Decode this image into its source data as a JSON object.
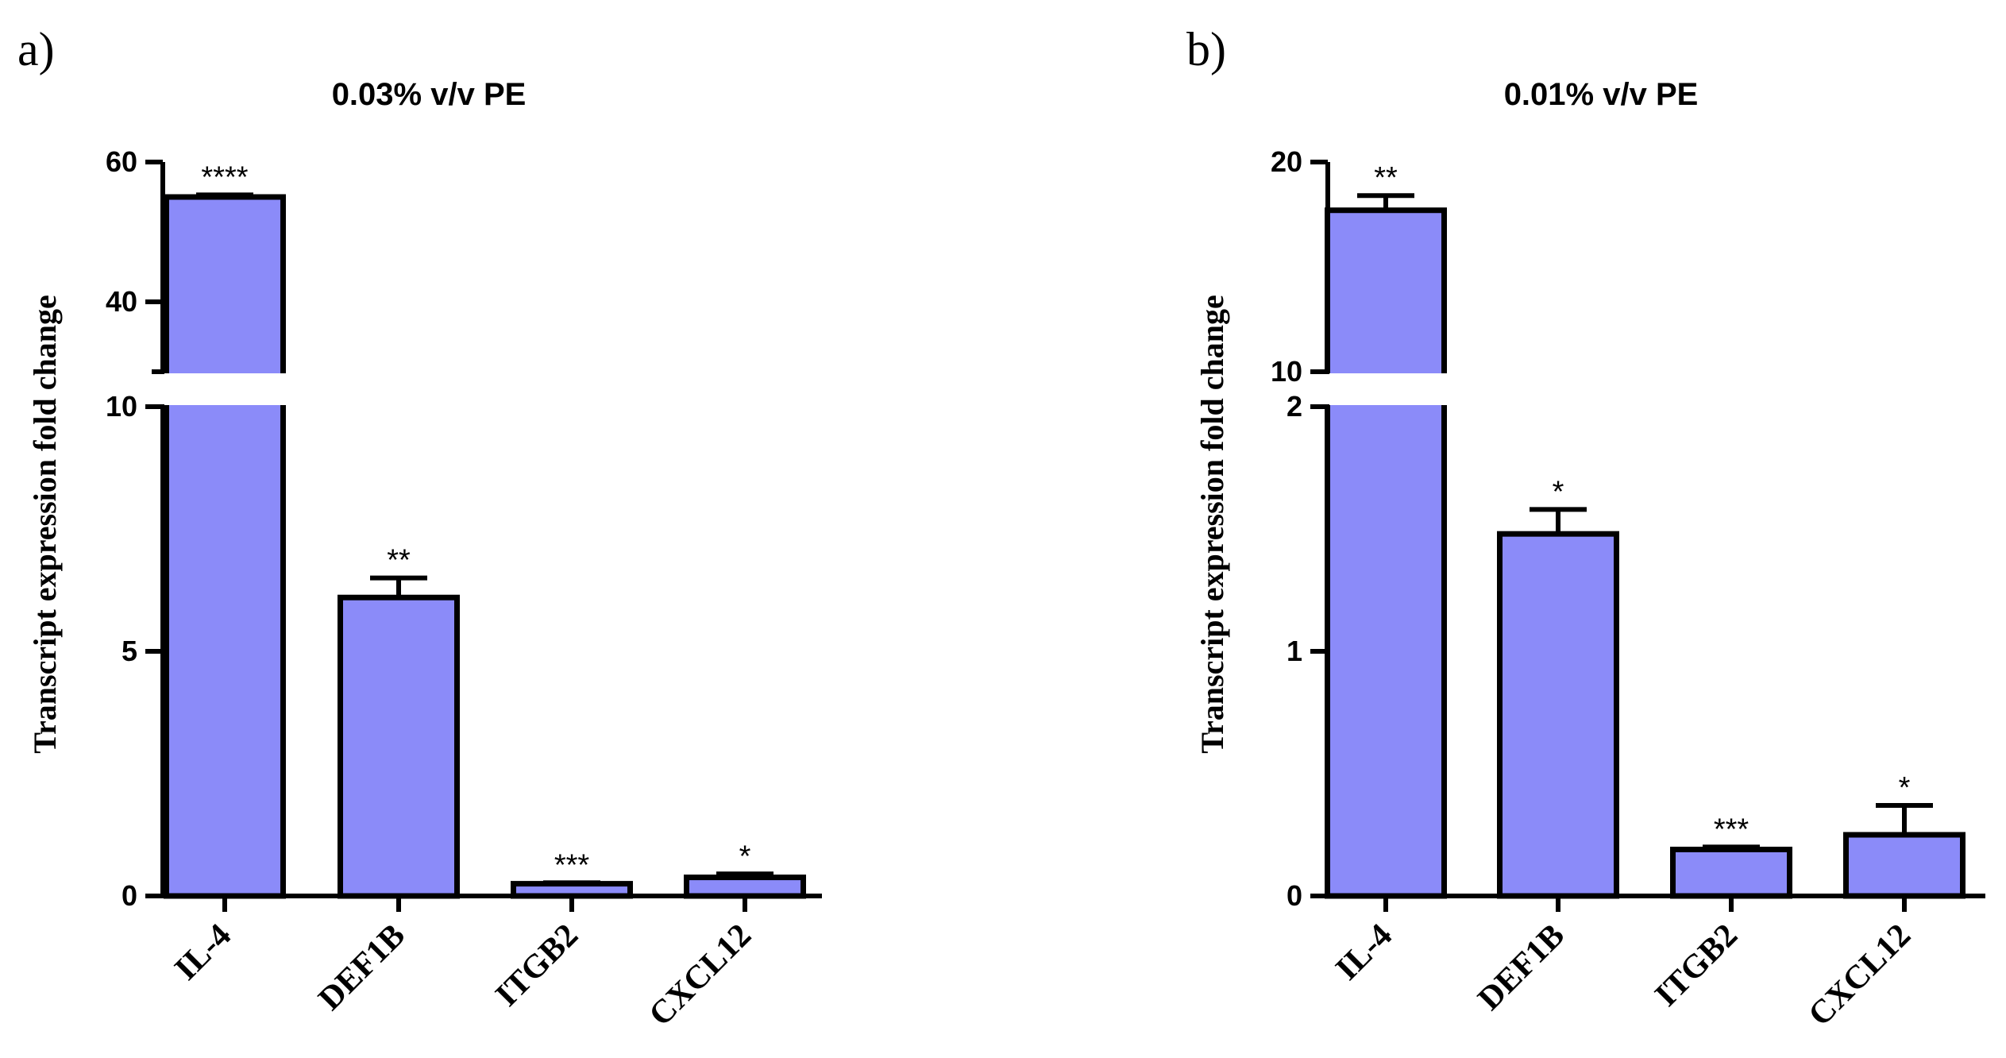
{
  "chart_data": [
    {
      "type": "bar",
      "panel": "a)",
      "title": "0.03% v/v PE",
      "ylabel": "Transcript expression fold change",
      "xlabel": "",
      "categories": [
        "IL-4",
        "DEF1B",
        "ITGB2",
        "CXCL12"
      ],
      "values": [
        55.0,
        6.1,
        0.25,
        0.38
      ],
      "errors": [
        0.3,
        0.4,
        0.02,
        0.07
      ],
      "significance": [
        "****",
        "**",
        "***",
        "*"
      ],
      "ylim": [
        0,
        60
      ],
      "axis_break": [
        10,
        30
      ],
      "lower_ticks": [
        0,
        5,
        10
      ],
      "upper_ticks": [
        40,
        60
      ],
      "tick_labels_lower": [
        "0",
        "5",
        "10"
      ],
      "tick_labels_upper": [
        "40",
        "60"
      ],
      "bar_color": "#8b8bf9"
    },
    {
      "type": "bar",
      "panel": "b)",
      "title": "0.01% v/v PE",
      "ylabel": "Transcript expression fold change",
      "xlabel": "",
      "categories": [
        "IL-4",
        "DEF1B",
        "ITGB2",
        "CXCL12"
      ],
      "values": [
        17.7,
        1.48,
        0.19,
        0.25
      ],
      "errors": [
        0.7,
        0.1,
        0.01,
        0.12
      ],
      "significance": [
        "**",
        "*",
        "***",
        "*"
      ],
      "ylim": [
        0,
        20
      ],
      "axis_break": [
        2,
        10
      ],
      "lower_ticks": [
        0,
        1,
        2
      ],
      "upper_ticks": [
        10,
        20
      ],
      "tick_labels_lower": [
        "0",
        "1",
        "2"
      ],
      "tick_labels_upper": [
        "10",
        "20"
      ],
      "bar_color": "#8b8bf9"
    }
  ]
}
